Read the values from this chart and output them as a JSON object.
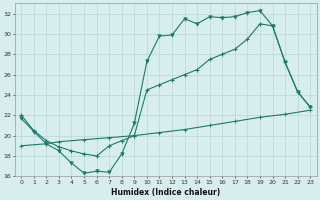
{
  "xlabel": "Humidex (Indice chaleur)",
  "background_color": "#d8eeee",
  "grid_color": "#b8d8d8",
  "line_color": "#1a7a6a",
  "xlim": [
    -0.5,
    23.5
  ],
  "ylim": [
    16,
    33
  ],
  "xticks": [
    0,
    1,
    2,
    3,
    4,
    5,
    6,
    7,
    8,
    9,
    10,
    11,
    12,
    13,
    14,
    15,
    16,
    17,
    18,
    19,
    20,
    21,
    22,
    23
  ],
  "yticks": [
    16,
    18,
    20,
    22,
    24,
    26,
    28,
    30,
    32
  ],
  "line1_x": [
    0,
    1,
    2,
    3,
    4,
    5,
    6,
    7,
    8,
    9,
    10,
    11,
    12,
    13,
    14,
    15,
    16,
    17,
    18,
    19,
    20,
    21,
    22,
    23
  ],
  "line1_y": [
    21.7,
    20.4,
    19.2,
    18.5,
    17.3,
    16.3,
    16.5,
    16.4,
    18.2,
    21.2,
    27.3,
    29.8,
    29.9,
    31.5,
    31.0,
    31.7,
    31.6,
    31.7,
    32.1,
    32.3,
    30.8,
    27.2,
    24.3,
    22.8
  ],
  "line2_x": [
    0,
    1,
    2,
    3,
    4,
    5,
    6,
    7,
    8,
    9,
    10,
    11,
    12,
    13,
    14,
    15,
    16,
    17,
    18,
    19,
    20,
    21,
    22,
    23
  ],
  "line2_y": [
    22.0,
    20.5,
    19.5,
    18.9,
    18.5,
    18.2,
    18.0,
    19.0,
    19.5,
    20.0,
    24.5,
    25.0,
    25.5,
    26.0,
    26.5,
    27.5,
    28.0,
    28.5,
    29.5,
    31.0,
    30.8,
    27.2,
    24.3,
    22.8
  ],
  "line3_x": [
    0,
    2,
    3,
    5,
    7,
    9,
    11,
    13,
    15,
    17,
    19,
    21,
    23
  ],
  "line3_y": [
    19.0,
    19.2,
    19.4,
    19.6,
    19.8,
    20.0,
    20.3,
    20.6,
    21.0,
    21.4,
    21.8,
    22.1,
    22.5
  ]
}
